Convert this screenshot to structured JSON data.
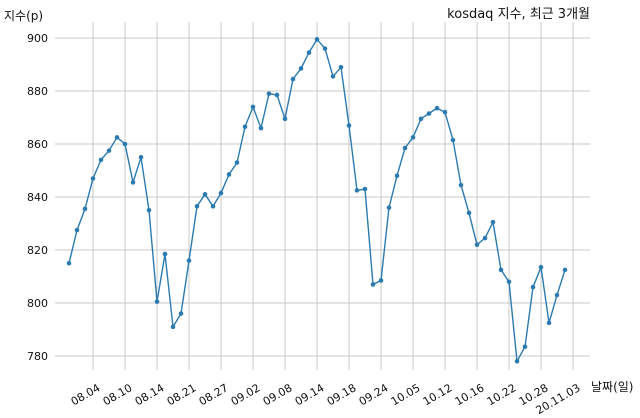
{
  "chart_data": {
    "type": "line",
    "title": "kosdaq 지수, 최근 3개월",
    "xlabel": "날짜(일)",
    "ylabel": "지수(p)",
    "ylim": [
      770,
      905
    ],
    "yticks": [
      780,
      800,
      820,
      840,
      860,
      880,
      900
    ],
    "grid": true,
    "legend": "none",
    "xtick_labels": [
      "08.04",
      "08.10",
      "08.14",
      "08.21",
      "08.27",
      "09.02",
      "09.08",
      "09.14",
      "09.18",
      "09.24",
      "10.05",
      "10.12",
      "10.16",
      "10.22",
      "10.28",
      "20.11.03"
    ],
    "xtick_indices": [
      3,
      7,
      11,
      15,
      19,
      23,
      27,
      31,
      35,
      39,
      43,
      47,
      51,
      55,
      59,
      63
    ],
    "series": [
      {
        "color": "#2b7bb0",
        "values": [
          815,
          827.5,
          835.5,
          847,
          854,
          857.5,
          862.5,
          860,
          845.5,
          855,
          835,
          800.5,
          818.5,
          791,
          796,
          816,
          836.5,
          841,
          836.5,
          841.5,
          848.5,
          853,
          866.5,
          874,
          866,
          879,
          878.5,
          869.5,
          884.5,
          888.5,
          894.5,
          899.5,
          896,
          885.5,
          889,
          867,
          842.5,
          843,
          807,
          808.5,
          836,
          848,
          858.5,
          862.5,
          869.5,
          871.5,
          873.5,
          872,
          861.5,
          844.5,
          834,
          822,
          824.5,
          830.5,
          812.5,
          808,
          778,
          783.5,
          806,
          813.5,
          792.5,
          803,
          812.5
        ]
      }
    ]
  }
}
